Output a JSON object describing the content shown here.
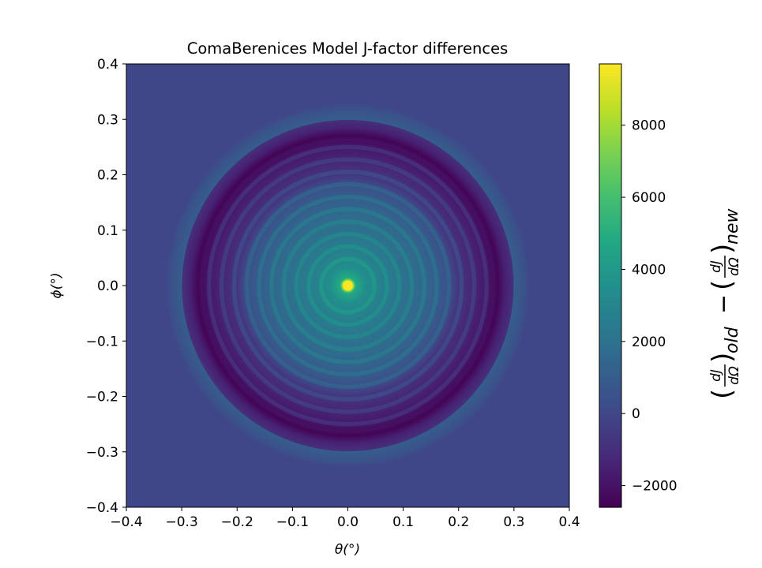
{
  "chart_data": {
    "type": "heatmap",
    "title": "ComaBerenices Model J-factor differences",
    "xlabel": "θ(°)",
    "ylabel": "ϕ(°)",
    "xlim": [
      -0.4,
      0.4
    ],
    "ylim": [
      -0.4,
      0.4
    ],
    "x_ticks": [
      "−0.4",
      "−0.3",
      "−0.2",
      "−0.1",
      "0.0",
      "0.1",
      "0.2",
      "0.3",
      "0.4"
    ],
    "y_ticks": [
      "−0.4",
      "−0.3",
      "−0.2",
      "−0.1",
      "0.0",
      "0.1",
      "0.2",
      "0.3",
      "0.4"
    ],
    "x_tick_values": [
      -0.4,
      -0.3,
      -0.2,
      -0.1,
      0.0,
      0.1,
      0.2,
      0.3,
      0.4
    ],
    "y_tick_values": [
      -0.4,
      -0.3,
      -0.2,
      -0.1,
      0.0,
      0.1,
      0.2,
      0.3,
      0.4
    ],
    "colormap": "viridis",
    "vmin": -2600,
    "vmax": 9700,
    "colorbar_ticks": [
      "−2000",
      "0",
      "2000",
      "4000",
      "6000",
      "8000"
    ],
    "colorbar_tick_values": [
      -2000,
      0,
      2000,
      4000,
      6000,
      8000
    ],
    "colorbar_label": {
      "open_paren": "(",
      "dj": "dJ",
      "domega": "dΩ",
      "close_paren": ")",
      "sub_old": "old",
      "minus": "−",
      "sub_new": "new"
    },
    "radial_profile": {
      "r_deg": [
        0.0,
        0.008,
        0.015,
        0.03,
        0.06,
        0.1,
        0.14,
        0.18,
        0.2,
        0.225,
        0.245,
        0.262,
        0.272,
        0.285,
        0.3,
        0.301,
        0.32,
        0.33,
        0.4
      ],
      "value": [
        9700,
        9700,
        4800,
        3800,
        3000,
        2300,
        1700,
        800,
        -400,
        -1000,
        -1400,
        -1900,
        -2500,
        -1500,
        -900,
        1000,
        500,
        0,
        0
      ]
    },
    "ring_spacing_deg": 0.0225,
    "ring_amplitude": 600
  }
}
